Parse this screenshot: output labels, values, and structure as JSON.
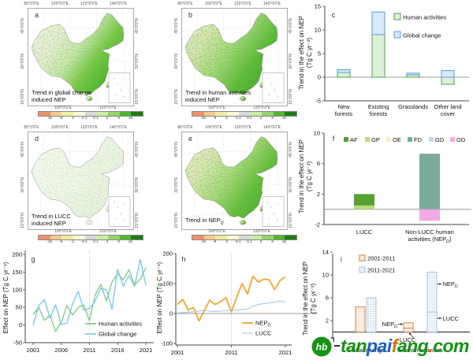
{
  "panels": {
    "a": {
      "letter": "a",
      "caption_lines": [
        "Trend in global change",
        "induced NEP"
      ]
    },
    "b": {
      "letter": "b",
      "caption_lines": [
        "Trend in human activities",
        "induced NEP"
      ]
    },
    "d": {
      "letter": "d",
      "caption_lines": [
        "Trend in LUCC",
        "induced NEP"
      ]
    },
    "e": {
      "letter": "e",
      "caption_main": "Trend in NEP",
      "caption_sub": "D"
    }
  },
  "maps": {
    "lon_top": [
      "80°0'0\"E",
      "100°0'0\"E",
      "120°0'0\"E",
      "140°0'0\"E"
    ],
    "lon_bottom": [
      "100°0'0\"E",
      "120°0'0\"E"
    ],
    "lat_left": [
      "45°0'0\"N",
      "30°0'0\"N",
      "15°0'0\"N"
    ],
    "lat_right": [
      "45°0'0\"N",
      "30°0'0\"N",
      "15°0'0\"N"
    ],
    "colorbar": {
      "tick_labels": [
        "-15",
        "-8",
        "-2",
        "-0.1",
        "0.1",
        "2",
        "8",
        "15"
      ],
      "colors": [
        "#f0926a",
        "#f6c98e",
        "#f2ed9e",
        "#fbf8d8",
        "#d8d8d8",
        "#cdeca6",
        "#97d465",
        "#4fb82c",
        "#1d7d12"
      ]
    }
  },
  "chart_data": [
    {
      "id": "c",
      "type": "bar",
      "stacked": true,
      "ylabel_lines": [
        "Trend in the effect on NEP",
        "(Tg C yr⁻²)"
      ],
      "ylim": [
        -5,
        15
      ],
      "yticks": [
        -5,
        0,
        5,
        10,
        15
      ],
      "categories": [
        [
          "New",
          "forests"
        ],
        [
          "Existing",
          "forests"
        ],
        [
          "Grasslands"
        ],
        [
          "Other land",
          "cover"
        ]
      ],
      "series": [
        {
          "name": "Human activities",
          "fill": "#ddefd8",
          "edge": "#4ca64c",
          "values": [
            1.0,
            9.0,
            0.5,
            -1.5
          ]
        },
        {
          "name": "Global change",
          "fill": "#d9eafb",
          "edge": "#5b9bd5",
          "values": [
            0.6,
            4.8,
            0.35,
            1.4
          ]
        }
      ]
    },
    {
      "id": "f",
      "type": "bar",
      "stacked": true,
      "ylabel_lines": [
        "Trend in the effect on NEP",
        "(Tg C yr⁻²)"
      ],
      "ylim": [
        -2,
        10
      ],
      "yticks": [
        -2,
        2,
        6,
        10
      ],
      "categories": [
        [
          "LUCC"
        ],
        [
          "Non-LUCC human",
          "activities (NEP_D)"
        ]
      ],
      "series": [
        {
          "name": "GP",
          "fill": "#b9dc7c",
          "values": [
            0.5,
            0
          ]
        },
        {
          "name": "AF",
          "fill": "#57a033",
          "values": [
            1.5,
            0
          ]
        },
        {
          "name": "OE",
          "fill": "#f7eecb",
          "values": [
            0,
            0
          ]
        },
        {
          "name": "FD",
          "fill": "#79aa9b",
          "values": [
            0,
            7.3
          ]
        },
        {
          "name": "GD",
          "fill": "#c6d9ef",
          "values": [
            0,
            0
          ]
        },
        {
          "name": "OD",
          "fill": "#f2a9e4",
          "values": [
            0,
            -1.5
          ]
        }
      ],
      "legend_order": [
        "AF",
        "GP",
        "OE",
        "FD",
        "GD",
        "OD"
      ]
    },
    {
      "id": "g",
      "type": "line",
      "ylabel": "Effect on NEP (Tg C yr⁻¹)",
      "ylim": [
        -50,
        200
      ],
      "yticks": [
        -50,
        0,
        50,
        100,
        150,
        200
      ],
      "x_start": 2001,
      "xticks": [
        2001,
        2006,
        2011,
        2016,
        2021
      ],
      "vline": 2011,
      "series": [
        {
          "name": "Human activities",
          "color": "#7fca7f",
          "values": [
            30,
            50,
            13,
            28,
            -18,
            8,
            55,
            28,
            50,
            57,
            12,
            85,
            115,
            68,
            122,
            145,
            128,
            157,
            113,
            130,
            162
          ]
        },
        {
          "name": "Global change",
          "color": "#72c9e8",
          "values": [
            0,
            55,
            72,
            20,
            57,
            2,
            5,
            60,
            96,
            42,
            47,
            68,
            104,
            100,
            45,
            158,
            110,
            140,
            110,
            186,
            113
          ]
        }
      ]
    },
    {
      "id": "h",
      "type": "line",
      "ylabel": "Effect on NEP (Tg C yr⁻¹)",
      "ylim": [
        -100,
        200
      ],
      "yticks": [
        -100,
        0,
        100,
        200
      ],
      "x_start": 2001,
      "xticks": [
        2001,
        2011,
        2021
      ],
      "vline": 2011,
      "hline": 0,
      "series": [
        {
          "name": "NEP_D",
          "color": "#f6a432",
          "width": 1.8,
          "values": [
            30,
            47,
            12,
            20,
            -25,
            10,
            45,
            30,
            40,
            53,
            5,
            55,
            100,
            65,
            125,
            105,
            115,
            113,
            80,
            110,
            123
          ]
        },
        {
          "name": "LUCC",
          "color": "#a9c9e8",
          "width": 1.2,
          "values": [
            2,
            3,
            5,
            5,
            8,
            12,
            8,
            7,
            8,
            10,
            10,
            12,
            13,
            15,
            25,
            30,
            33,
            35,
            38,
            42,
            38
          ]
        }
      ]
    },
    {
      "id": "i",
      "type": "grouped-stacked-bar",
      "ylabel_lines": [
        "Trend in the effect on NEP",
        "(Tg C yr⁻²)"
      ],
      "ylim": [
        0,
        14
      ],
      "yticks": [
        2,
        6,
        10,
        14
      ],
      "categories": [
        "Global change",
        "Human activities"
      ],
      "periods": [
        {
          "name": "2001-2011",
          "edge": "#c87c3a",
          "pattern": "dotsO"
        },
        {
          "name": "2011-2021",
          "edge": "#a9bed8",
          "pattern": "dotsB"
        }
      ],
      "bars": [
        {
          "category": "Global change",
          "period": "2001-2011",
          "segments": [
            {
              "value": 4.4
            }
          ]
        },
        {
          "category": "Global change",
          "period": "2011-2021",
          "segments": [
            {
              "value": 6.0
            }
          ]
        },
        {
          "category": "Human activities",
          "period": "2001-2011",
          "segments": [
            {
              "label": "LUCC",
              "value": 0.7
            },
            {
              "label": "NEP_D",
              "value": 0.9
            }
          ]
        },
        {
          "category": "Human activities",
          "period": "2011-2021",
          "segments": [
            {
              "label": "LUCC",
              "value": 3.5
            },
            {
              "label": "NEP_D",
              "value": 7.0
            }
          ]
        }
      ],
      "annotations": [
        "NEP_D",
        "LUCC",
        "NEP_D",
        "LUCC"
      ]
    }
  ],
  "watermark": {
    "logo_text": "hb",
    "segments": [
      {
        "text": "tan",
        "color": "#149314"
      },
      {
        "text": "pai",
        "color": "#1c5fc2"
      },
      {
        "text": "f",
        "color": "#d2710f"
      },
      {
        "text": "ang",
        "color": "#149314"
      },
      {
        "text": ".",
        "color": "#d2710f"
      },
      {
        "text": "com",
        "color": "#149314"
      }
    ]
  }
}
